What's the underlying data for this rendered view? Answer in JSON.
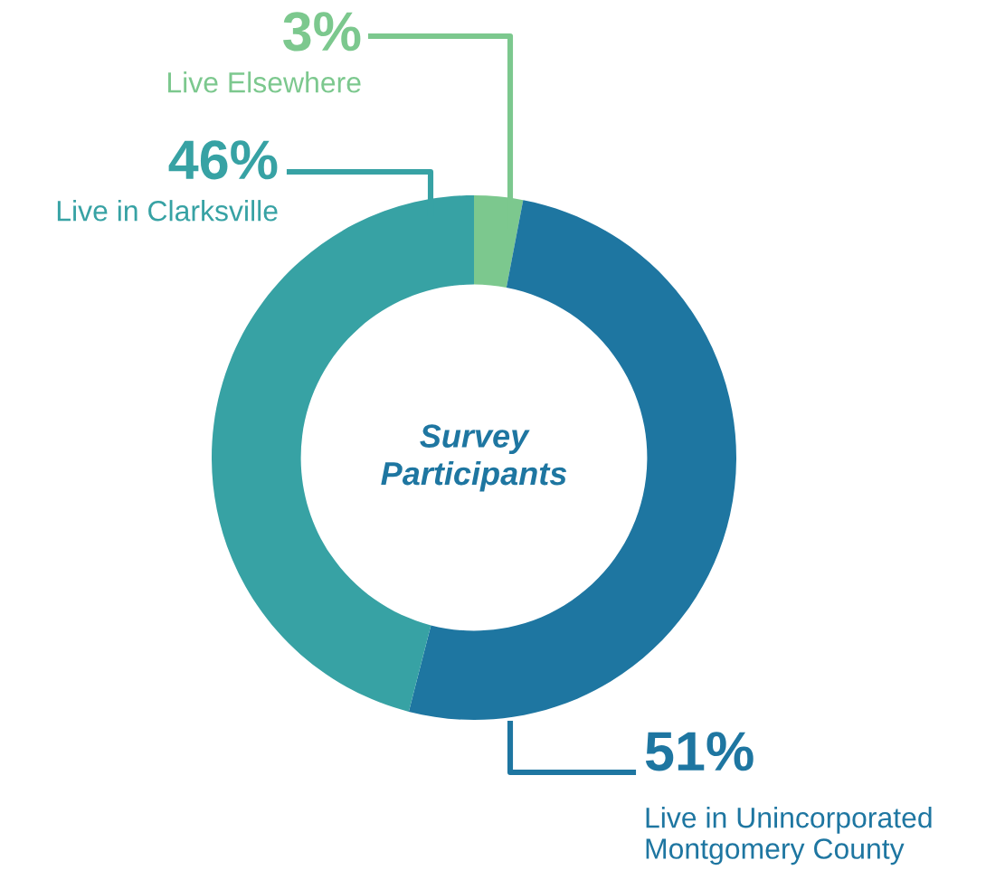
{
  "chart_data": {
    "type": "donut",
    "title": "Survey\nParticipants",
    "categories": [
      "Live Elsewhere",
      "Live in Unincorporated\nMontgomery County",
      "Live in Clarksville"
    ],
    "values": [
      3,
      51,
      46
    ],
    "colors": [
      "#7cc88e",
      "#1e76a1",
      "#37a2a4"
    ],
    "value_labels": [
      "3%",
      "51%",
      "46%"
    ],
    "legend": false
  }
}
